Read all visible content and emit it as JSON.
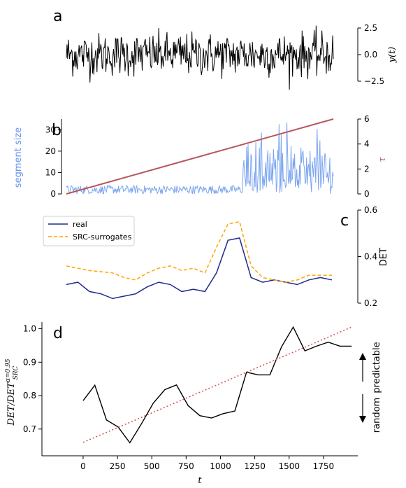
{
  "chart_data": [
    {
      "panel": "a",
      "type": "line",
      "ylabel": "y(t)",
      "ylim": [
        -2.5,
        2.5
      ],
      "yticks": [
        "2.5",
        "0.0",
        "−2.5"
      ],
      "description_series": "noise",
      "series": [
        {
          "color": "#000000",
          "samples": 420,
          "amplitude": 1.0,
          "center": 0.0
        }
      ]
    },
    {
      "panel": "b",
      "type": "line",
      "ylabel_left": "segment size",
      "ylabel_right": "τ",
      "ylim_left": [
        0,
        35
      ],
      "yticks_left": [
        "0",
        "10",
        "20",
        "30"
      ],
      "ylim_right": [
        0,
        6
      ],
      "yticks_right": [
        "0",
        "2",
        "4",
        "6"
      ],
      "series": [
        {
          "axis": "right",
          "color": "#b5575c",
          "x": [
            0,
            1
          ],
          "values": [
            0,
            6
          ]
        },
        {
          "axis": "left",
          "color": "#6495ed",
          "samples": 380,
          "switch_fraction": 0.66,
          "low": [
            0,
            4
          ],
          "high": [
            0,
            36
          ]
        }
      ]
    },
    {
      "panel": "c",
      "type": "line",
      "ylabel": "DET",
      "ylim": [
        0.2,
        0.6
      ],
      "yticks": [
        "0.2",
        "0.4",
        "0.6"
      ],
      "legend": [
        "real",
        "SRC-surrogates"
      ],
      "legend_position": "top-left",
      "series": [
        {
          "name": "real",
          "color": "#1f2a8c",
          "style": "solid",
          "values": [
            0.28,
            0.29,
            0.25,
            0.24,
            0.22,
            0.23,
            0.24,
            0.27,
            0.29,
            0.28,
            0.25,
            0.26,
            0.25,
            0.33,
            0.47,
            0.48,
            0.31,
            0.29,
            0.3,
            0.29,
            0.28,
            0.3,
            0.31,
            0.3
          ]
        },
        {
          "name": "SRC-surrogates",
          "color": "#ffa500",
          "style": "dashed",
          "values": [
            0.36,
            0.35,
            0.34,
            0.335,
            0.33,
            0.31,
            0.3,
            0.33,
            0.35,
            0.36,
            0.34,
            0.35,
            0.33,
            0.44,
            0.54,
            0.55,
            0.36,
            0.31,
            0.3,
            0.29,
            0.3,
            0.32,
            0.32,
            0.32
          ]
        }
      ]
    },
    {
      "panel": "d",
      "type": "line",
      "xlabel": "t",
      "ylabel": "DET/DET",
      "ylabel_sub": "SRC",
      "ylabel_sup": "α=0.95",
      "xlim": [
        -300,
        2000
      ],
      "xticks": [
        0,
        250,
        500,
        750,
        1000,
        1250,
        1500,
        1750
      ],
      "ylim": [
        0.62,
        1.02
      ],
      "yticks": [
        "0.7",
        "0.8",
        "0.9",
        "1.0"
      ],
      "annotations": {
        "up": "predictable",
        "down": "random"
      },
      "series": [
        {
          "color": "#000000",
          "style": "solid",
          "x": [
            0,
            85,
            170,
            255,
            340,
            425,
            510,
            595,
            680,
            765,
            850,
            935,
            1020,
            1105,
            1190,
            1275,
            1360,
            1445,
            1530,
            1615,
            1700,
            1785,
            1870,
            1955
          ],
          "values": [
            0.785,
            0.831,
            0.727,
            0.706,
            0.659,
            0.716,
            0.777,
            0.818,
            0.832,
            0.77,
            0.74,
            0.733,
            0.746,
            0.754,
            0.87,
            0.862,
            0.862,
            0.946,
            1.005,
            0.934,
            0.948,
            0.96,
            0.948,
            0.948
          ]
        },
        {
          "color": "#cd5c5c",
          "style": "dotted",
          "x": [
            0,
            1955
          ],
          "values": [
            0.66,
            1.005
          ]
        }
      ]
    }
  ],
  "panels": {
    "a": {
      "letter": "a"
    },
    "b": {
      "letter": "b"
    },
    "c": {
      "letter": "c"
    },
    "d": {
      "letter": "d"
    }
  },
  "labels": {
    "a_ylabel": "y(t)",
    "b_ylabel_left": "segment size",
    "b_ylabel_right": "τ",
    "c_ylabel": "DET",
    "d_xlabel": "t",
    "d_up": "predictable",
    "d_down": "random"
  },
  "colors": {
    "black": "#000000",
    "blue_noise": "#6495ed",
    "tau_line": "#b5575c",
    "real": "#1f2a8c",
    "surrogate": "#ffa500",
    "trend": "#cd5c5c"
  }
}
